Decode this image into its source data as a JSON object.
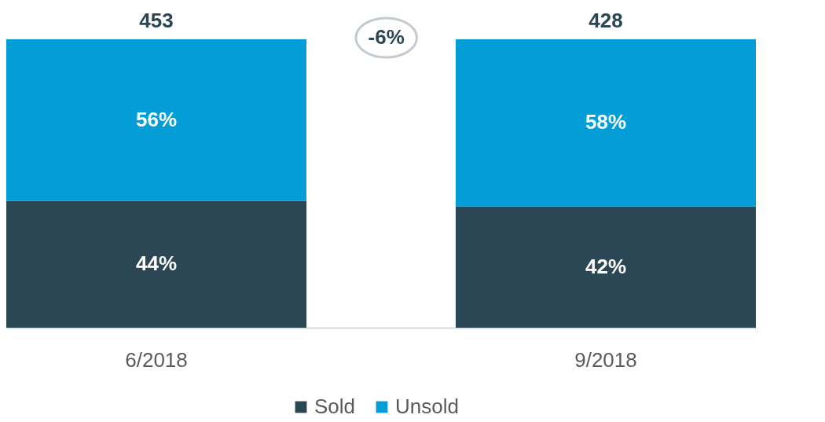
{
  "chart_data": {
    "type": "bar",
    "stacked": true,
    "categories": [
      "6/2018",
      "9/2018"
    ],
    "series": [
      {
        "name": "Sold",
        "color": "#2b4654",
        "values": [
          44,
          42
        ],
        "value_labels": [
          "44%",
          "42%"
        ]
      },
      {
        "name": "Unsold",
        "color": "#039ed8",
        "values": [
          56,
          58
        ],
        "value_labels": [
          "56%",
          "58%"
        ]
      }
    ],
    "annotations": [
      "-6%",
      {
        "text": "453",
        "x": "6/2018",
        "y": 100
      },
      {
        "text": "428",
        "x": "9/2018",
        "y": 100
      }
    ],
    "legend": "bottom",
    "grid": false
  }
}
